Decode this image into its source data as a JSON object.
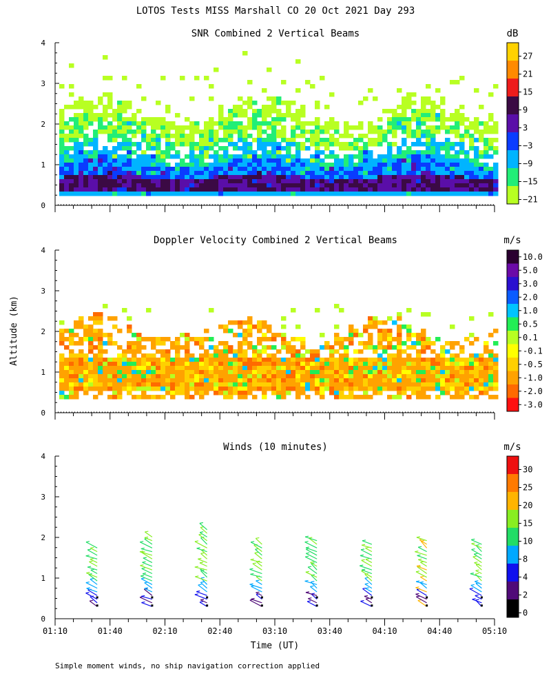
{
  "chart_data": {
    "type": "heatmap",
    "title": "LOTOS Tests MISS Marshall CO  20 Oct 2021 Day 293",
    "ylabel": "Altitude (km)",
    "xlabel": "Time (UT)",
    "footnote": "Simple moment winds, no ship navigation correction applied",
    "x_tick_labels": [
      "01:10",
      "01:40",
      "02:10",
      "02:40",
      "03:10",
      "03:40",
      "04:10",
      "04:40",
      "05:10"
    ],
    "x_range_minutes": [
      70,
      310
    ],
    "ylim": [
      0,
      4
    ],
    "y_ticks": [
      0,
      1,
      2,
      3,
      4
    ],
    "panels": [
      {
        "title": "SNR Combined 2 Vertical Beams",
        "unit": "dB",
        "colorbar": {
          "labels": [
            "27",
            "21",
            "15",
            "9",
            "3",
            "−3",
            "−9",
            "−15",
            "−21"
          ],
          "colors": [
            "#ffd200",
            "#ff8a00",
            "#ee1c1c",
            "#3b0a44",
            "#5a0ea8",
            "#0a3cff",
            "#00b4ff",
            "#22ee77",
            "#b8ff22"
          ]
        }
      },
      {
        "title": "Doppler Velocity Combined 2 Vertical Beams",
        "unit": "m/s",
        "colorbar": {
          "labels": [
            "10.0",
            "5.0",
            "3.0",
            "2.0",
            "1.0",
            "0.5",
            "0.1",
            "-0.1",
            "-0.5",
            "-1.0",
            "-2.0",
            "-3.0"
          ],
          "colors": [
            "#2a0030",
            "#6b0aa8",
            "#2a10d0",
            "#0a5cff",
            "#00c4ff",
            "#22ee55",
            "#b8ff22",
            "#ffff00",
            "#ffd000",
            "#ffa200",
            "#ff6a00",
            "#ff1010"
          ]
        }
      },
      {
        "title": "Winds (10 minutes)",
        "unit": "m/s",
        "colorbar": {
          "labels": [
            "30",
            "25",
            "20",
            "15",
            "10",
            "8",
            "4",
            "2",
            "0"
          ],
          "colors": [
            "#ee1010",
            "#ff7a00",
            "#ffb400",
            "#88ee22",
            "#22dd66",
            "#00a8ff",
            "#1010ee",
            "#500a78",
            "#000000"
          ]
        },
        "profile_times_minutes": [
          93,
          123,
          153,
          183,
          213,
          243,
          273,
          303
        ]
      }
    ]
  }
}
